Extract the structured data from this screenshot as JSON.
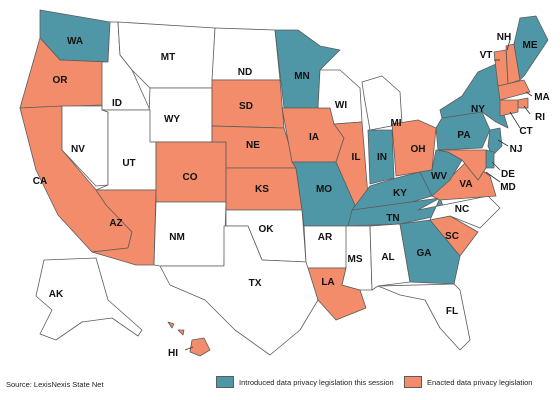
{
  "colors": {
    "introduced": "#4f97a6",
    "enacted": "#f28c6a",
    "none": "#ffffff",
    "border": "#5c5c5c"
  },
  "source": "Source: LexisNexis State Net",
  "legend": [
    {
      "key": "introduced",
      "label": "Introduced data privacy legislation this session"
    },
    {
      "key": "enacted",
      "label": "Enacted data privacy legislation"
    }
  ],
  "states": {
    "WA": "introduced",
    "OR": "enacted",
    "CA": "enacted",
    "ID": "none",
    "NV": "none",
    "MT": "none",
    "WY": "none",
    "UT": "none",
    "AZ": "enacted",
    "CO": "enacted",
    "NM": "none",
    "ND": "none",
    "SD": "enacted",
    "NE": "enacted",
    "KS": "enacted",
    "OK": "none",
    "TX": "none",
    "MN": "introduced",
    "IA": "enacted",
    "MO": "introduced",
    "AR": "none",
    "LA": "enacted",
    "WI": "none",
    "IL": "enacted",
    "MI": "none",
    "IN": "introduced",
    "OH": "enacted",
    "KY": "introduced",
    "TN": "introduced",
    "MS": "none",
    "AL": "none",
    "GA": "introduced",
    "FL": "none",
    "SC": "enacted",
    "NC": "none",
    "VA": "enacted",
    "WV": "introduced",
    "PA": "introduced",
    "NY": "introduced",
    "VT": "enacted",
    "NH": "enacted",
    "ME": "introduced",
    "MA": "enacted",
    "RI": "enacted",
    "CT": "enacted",
    "NJ": "introduced",
    "DE": "introduced",
    "MD": "enacted",
    "AK": "none",
    "HI": "enacted"
  }
}
